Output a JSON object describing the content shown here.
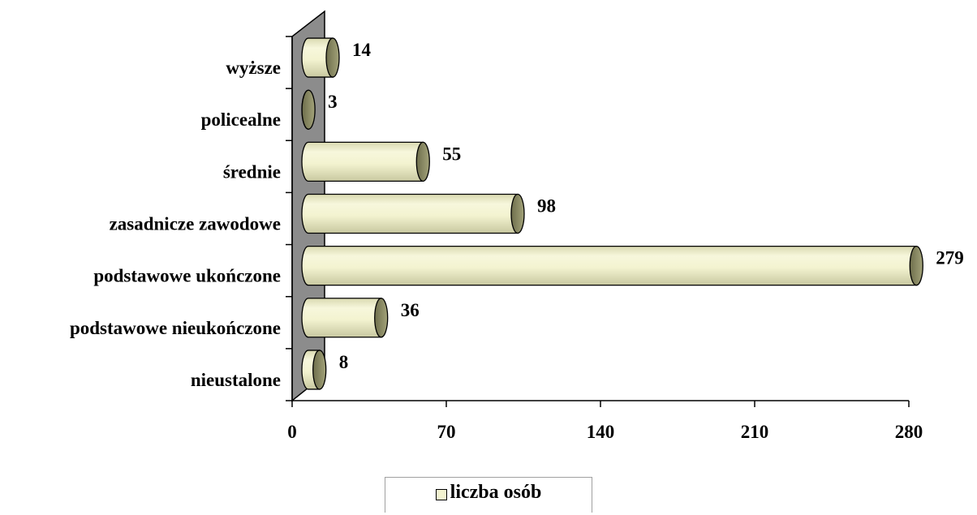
{
  "chart_data": {
    "type": "bar",
    "orientation": "horizontal",
    "categories": [
      "wyższe",
      "policealne",
      "średnie",
      "zasadnicze zawodowe",
      "podstawowe ukończone",
      "podstawowe nieukończone",
      "nieustalone"
    ],
    "series": [
      {
        "name": "liczba osób",
        "values": [
          14,
          3,
          55,
          98,
          279,
          36,
          8
        ]
      }
    ],
    "data_labels": [
      "14",
      "3",
      "55",
      "98",
      "279",
      "36",
      "8"
    ],
    "xlim": [
      0,
      280
    ],
    "x_ticks": [
      "0",
      "70",
      "140",
      "210",
      "280"
    ],
    "legend_position": "bottom",
    "grid": false,
    "style": "3d-cylinder"
  },
  "colors": {
    "bar_fill": "#f3f3d0",
    "bar_cap": "#8a8a62",
    "wall": "#8c8c8c",
    "axis": "#000000"
  }
}
